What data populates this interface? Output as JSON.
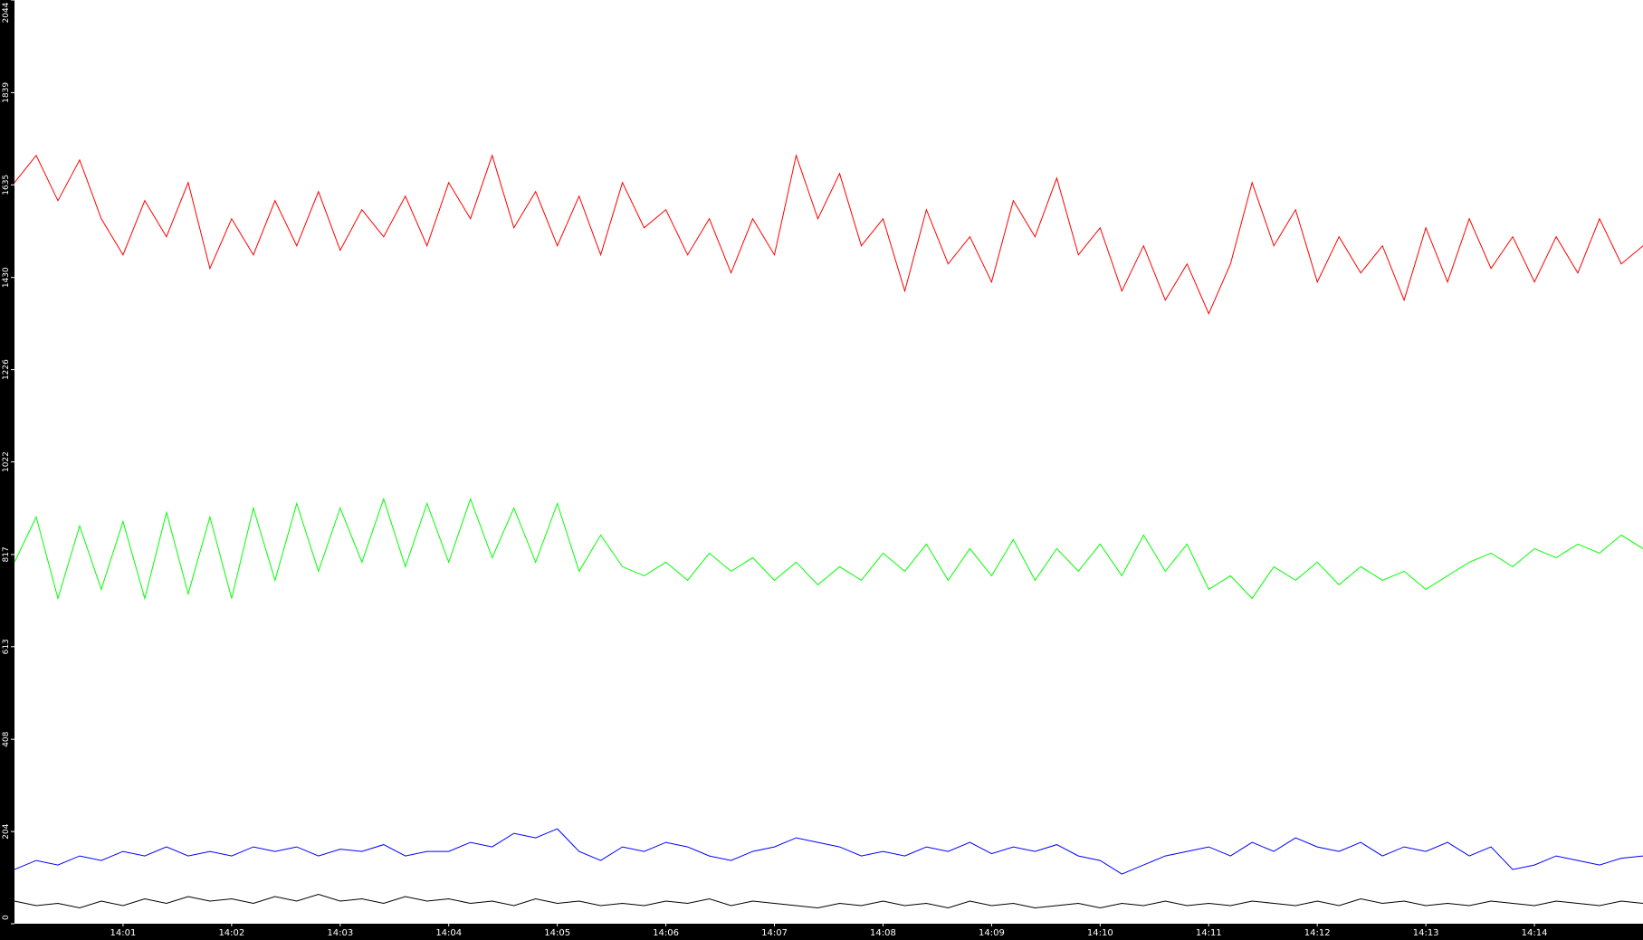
{
  "chart_data": {
    "type": "line",
    "x": [
      0,
      0.2,
      0.4,
      0.6,
      0.8,
      1,
      1.2,
      1.4,
      1.6,
      1.8,
      2,
      2.2,
      2.4,
      2.6,
      2.8,
      3,
      3.2,
      3.4,
      3.6,
      3.8,
      4,
      4.2,
      4.4,
      4.6,
      4.8,
      5,
      5.2,
      5.4,
      5.6,
      5.8,
      6,
      6.2,
      6.4,
      6.6,
      6.8,
      7,
      7.2,
      7.4,
      7.6,
      7.8,
      8,
      8.2,
      8.4,
      8.6,
      8.8,
      9,
      9.2,
      9.4,
      9.6,
      9.8,
      10,
      10.2,
      10.4,
      10.6,
      10.8,
      11,
      11.2,
      11.4,
      11.6,
      11.8,
      12,
      12.2,
      12.4,
      12.6,
      12.8,
      13,
      13.2,
      13.4,
      13.6,
      13.8,
      14,
      14.2,
      14.4,
      14.6,
      14.8,
      15
    ],
    "series": [
      {
        "color": "#ff0000",
        "values": [
          1640,
          1700,
          1600,
          1690,
          1560,
          1480,
          1600,
          1520,
          1640,
          1450,
          1560,
          1480,
          1600,
          1500,
          1620,
          1490,
          1580,
          1520,
          1610,
          1500,
          1640,
          1560,
          1700,
          1540,
          1620,
          1500,
          1610,
          1480,
          1640,
          1540,
          1580,
          1480,
          1560,
          1440,
          1560,
          1480,
          1700,
          1560,
          1660,
          1500,
          1560,
          1400,
          1580,
          1460,
          1520,
          1420,
          1600,
          1520,
          1650,
          1480,
          1540,
          1400,
          1500,
          1380,
          1460,
          1350,
          1460,
          1640,
          1500,
          1580,
          1420,
          1520,
          1440,
          1500,
          1380,
          1540,
          1420,
          1560,
          1450,
          1520,
          1420,
          1520,
          1440,
          1560,
          1460,
          1500
        ]
      },
      {
        "color": "#00ff00",
        "values": [
          800,
          900,
          720,
          880,
          740,
          890,
          720,
          910,
          730,
          900,
          720,
          920,
          760,
          930,
          780,
          920,
          800,
          940,
          790,
          930,
          800,
          940,
          810,
          920,
          800,
          930,
          780,
          860,
          790,
          770,
          800,
          760,
          820,
          780,
          810,
          760,
          800,
          750,
          790,
          760,
          820,
          780,
          840,
          760,
          830,
          770,
          850,
          760,
          830,
          780,
          840,
          770,
          860,
          780,
          840,
          740,
          770,
          720,
          790,
          760,
          800,
          750,
          790,
          760,
          780,
          740,
          770,
          800,
          820,
          790,
          830,
          810,
          840,
          820,
          860,
          830
        ]
      },
      {
        "color": "#0000ff",
        "values": [
          120,
          140,
          130,
          150,
          140,
          160,
          150,
          170,
          150,
          160,
          150,
          170,
          160,
          170,
          150,
          165,
          160,
          175,
          150,
          160,
          160,
          180,
          170,
          200,
          190,
          210,
          160,
          140,
          170,
          160,
          180,
          170,
          150,
          140,
          160,
          170,
          190,
          180,
          170,
          150,
          160,
          150,
          170,
          160,
          180,
          155,
          170,
          160,
          175,
          150,
          140,
          110,
          130,
          150,
          160,
          170,
          150,
          180,
          160,
          190,
          170,
          160,
          180,
          150,
          170,
          160,
          180,
          150,
          170,
          120,
          130,
          150,
          140,
          130,
          145,
          150
        ]
      },
      {
        "color": "#000000",
        "values": [
          50,
          40,
          45,
          35,
          50,
          40,
          55,
          45,
          60,
          50,
          55,
          45,
          60,
          50,
          65,
          50,
          55,
          45,
          60,
          50,
          55,
          45,
          50,
          40,
          55,
          45,
          50,
          40,
          45,
          40,
          50,
          45,
          55,
          40,
          50,
          45,
          40,
          35,
          45,
          40,
          50,
          40,
          45,
          35,
          50,
          40,
          45,
          35,
          40,
          45,
          35,
          45,
          40,
          50,
          40,
          45,
          40,
          50,
          45,
          40,
          50,
          40,
          55,
          45,
          50,
          40,
          45,
          40,
          50,
          45,
          40,
          50,
          45,
          40,
          50,
          45
        ]
      }
    ],
    "xlim": [
      0,
      15
    ],
    "xticks": [
      {
        "value": 1,
        "label": "14:01"
      },
      {
        "value": 2,
        "label": "14:02"
      },
      {
        "value": 3,
        "label": "14:03"
      },
      {
        "value": 4,
        "label": "14:04"
      },
      {
        "value": 5,
        "label": "14:05"
      },
      {
        "value": 6,
        "label": "14:06"
      },
      {
        "value": 7,
        "label": "14:07"
      },
      {
        "value": 8,
        "label": "14:08"
      },
      {
        "value": 9,
        "label": "14:09"
      },
      {
        "value": 10,
        "label": "14:10"
      },
      {
        "value": 11,
        "label": "14:11"
      },
      {
        "value": 12,
        "label": "14:12"
      },
      {
        "value": 13,
        "label": "14:13"
      },
      {
        "value": 14,
        "label": "14:14"
      }
    ],
    "ylim": [
      0,
      2044
    ],
    "yticks": [
      0,
      204,
      408,
      613,
      817,
      1022,
      1226,
      1430,
      1635,
      1839,
      2044
    ]
  }
}
